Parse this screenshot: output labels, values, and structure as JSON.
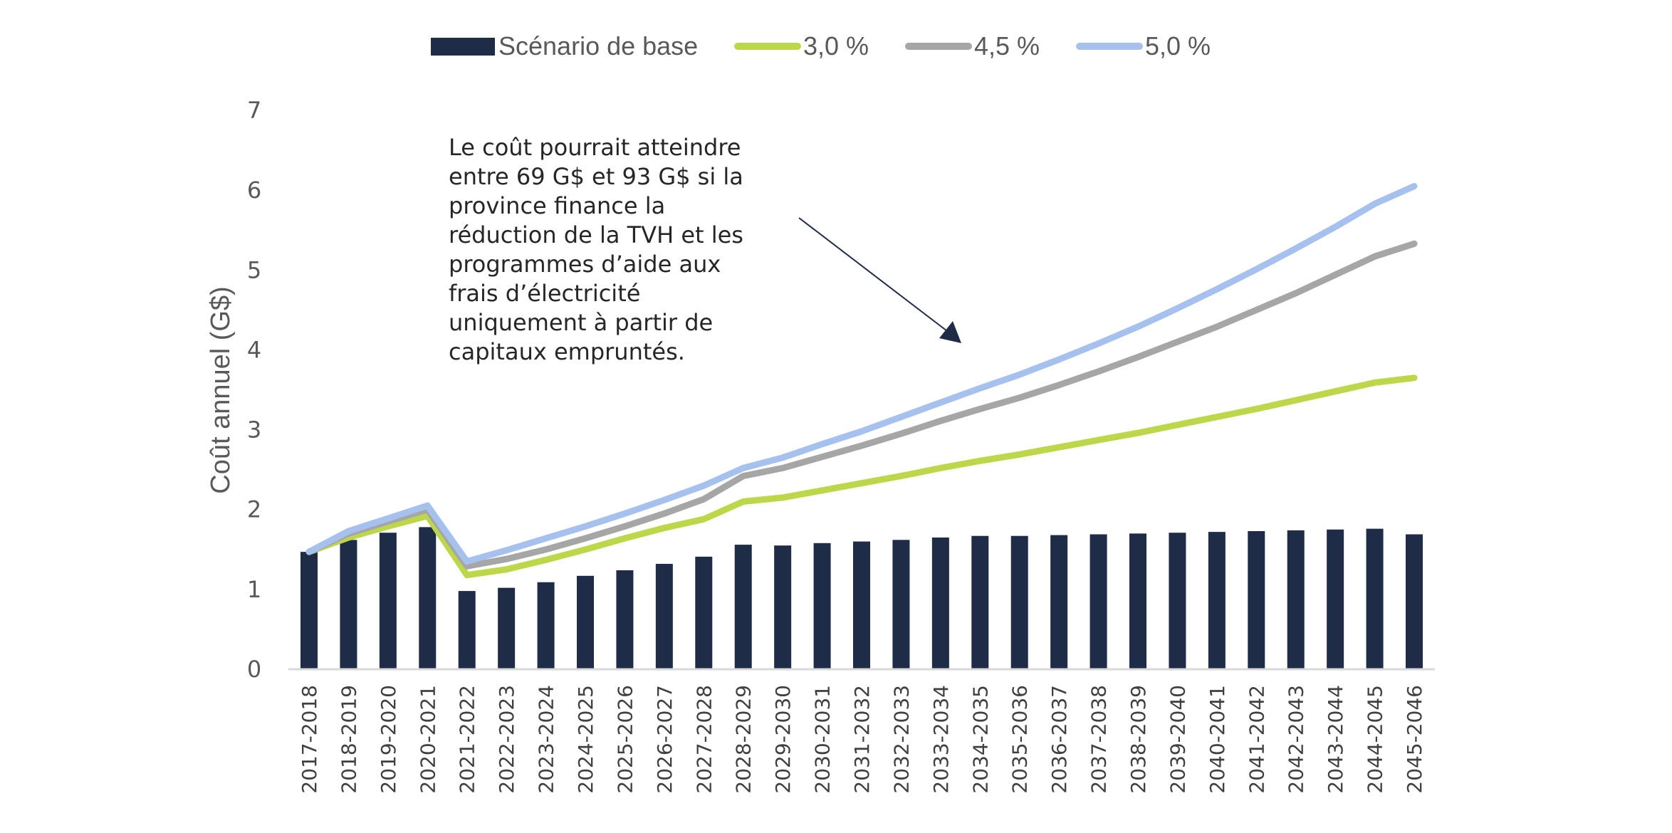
{
  "chart_data": {
    "type": "bar+line",
    "title": "",
    "ylabel": "Coût annuel (G$)",
    "xlabel": "",
    "ylim": [
      0,
      7
    ],
    "yticks": [
      "0",
      "1",
      "2",
      "3",
      "4",
      "5",
      "6",
      "7"
    ],
    "grid": false,
    "legend_position": "top-center",
    "categories": [
      "2017-2018",
      "2018-2019",
      "2019-2020",
      "2020-2021",
      "2021-2022",
      "2022-2023",
      "2023-2024",
      "2024-2025",
      "2025-2026",
      "2026-2027",
      "2027-2028",
      "2028-2029",
      "2029-2030",
      "2030-2031",
      "2031-2032",
      "2032-2033",
      "2033-2034",
      "2034-2035",
      "2035-2036",
      "2036-2037",
      "2037-2038",
      "2038-2039",
      "2039-2040",
      "2040-2041",
      "2041-2042",
      "2042-2043",
      "2043-2044",
      "2044-2045",
      "2045-2046"
    ],
    "series": [
      {
        "name": "Scénario de base",
        "kind": "bar",
        "color": "#1f2c47",
        "values": [
          1.47,
          1.62,
          1.71,
          1.78,
          0.98,
          1.02,
          1.09,
          1.17,
          1.24,
          1.32,
          1.41,
          1.56,
          1.55,
          1.58,
          1.6,
          1.62,
          1.65,
          1.67,
          1.67,
          1.68,
          1.69,
          1.7,
          1.71,
          1.72,
          1.73,
          1.74,
          1.75,
          1.76,
          1.69
        ]
      },
      {
        "name": "3,0 %",
        "kind": "line",
        "color": "#bcd84a",
        "values": [
          1.47,
          1.65,
          1.79,
          1.92,
          1.18,
          1.25,
          1.37,
          1.5,
          1.64,
          1.77,
          1.88,
          2.1,
          2.15,
          2.24,
          2.33,
          2.42,
          2.52,
          2.61,
          2.69,
          2.78,
          2.87,
          2.96,
          3.06,
          3.16,
          3.26,
          3.37,
          3.48,
          3.59,
          3.65
        ]
      },
      {
        "name": "4,5 %",
        "kind": "line",
        "color": "#a6a6a6",
        "values": [
          1.47,
          1.7,
          1.85,
          2.0,
          1.29,
          1.38,
          1.5,
          1.64,
          1.79,
          1.95,
          2.13,
          2.42,
          2.52,
          2.66,
          2.8,
          2.95,
          3.11,
          3.26,
          3.4,
          3.56,
          3.73,
          3.91,
          4.1,
          4.29,
          4.5,
          4.71,
          4.94,
          5.17,
          5.33
        ]
      },
      {
        "name": "5,0 %",
        "kind": "line",
        "color": "#a6c1ee",
        "values": [
          1.47,
          1.73,
          1.89,
          2.05,
          1.35,
          1.49,
          1.64,
          1.79,
          1.95,
          2.12,
          2.3,
          2.52,
          2.65,
          2.82,
          2.98,
          3.16,
          3.34,
          3.52,
          3.69,
          3.88,
          4.08,
          4.29,
          4.52,
          4.76,
          5.01,
          5.27,
          5.54,
          5.83,
          6.05
        ]
      }
    ],
    "annotation": {
      "lines": [
        "Le coût pourrait atteindre",
        "entre 69 G$ et 93 G$ si la",
        "province finance la",
        "réduction de la TVH et les",
        "programmes d’aide aux",
        "frais d’électricité",
        "uniquement à partir de",
        "capitaux empruntés."
      ],
      "arrow_color": "#1f2c47"
    },
    "axis_color": "#d9d9d9"
  }
}
